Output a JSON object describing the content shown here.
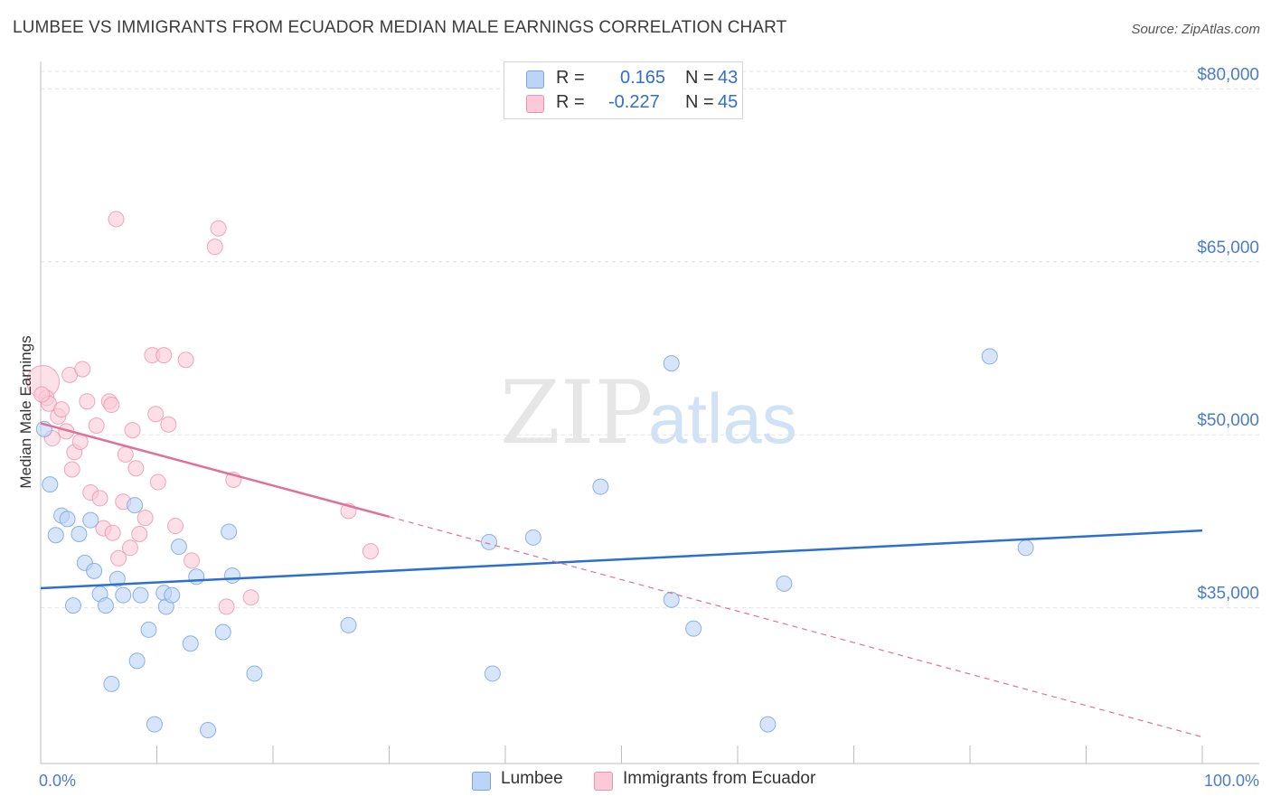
{
  "title": "LUMBEE VS IMMIGRANTS FROM ECUADOR MEDIAN MALE EARNINGS CORRELATION CHART",
  "source": "Source: ZipAtlas.com",
  "watermark": {
    "zip": "ZIP",
    "atlas": "atlas"
  },
  "legend": {
    "rows": [
      {
        "r_label": "R =",
        "r_value": "0.165",
        "n_label": "N =",
        "n_value": "43"
      },
      {
        "r_label": "R =",
        "r_value": "-0.227",
        "n_label": "N =",
        "n_value": "45"
      }
    ]
  },
  "colors": {
    "lumbee_fill": "#bcd4f7",
    "lumbee_stroke": "#7aa6e0",
    "lumbee_line": "#2c6fd1",
    "ecuador_fill": "#fbc9d7",
    "ecuador_stroke": "#eb93ad",
    "ecuador_line": "#e0709a",
    "tick_text": "#4a7cc9",
    "grid": "#e3e3e3"
  },
  "chart_data": {
    "type": "scatter",
    "title": "LUMBEE VS IMMIGRANTS FROM ECUADOR MEDIAN MALE EARNINGS CORRELATION CHART",
    "xlabel": "",
    "ylabel": "Median Male Earnings",
    "x_tick_labels": [
      "0.0%",
      "100.0%"
    ],
    "xlim": [
      0,
      100
    ],
    "ylim": [
      21500,
      83000
    ],
    "y_ticks": [
      {
        "value": 35000,
        "label": "$35,000"
      },
      {
        "value": 50000,
        "label": "$50,000"
      },
      {
        "value": 65000,
        "label": "$65,000"
      },
      {
        "value": 80000,
        "label": "$80,000"
      }
    ],
    "grid": true,
    "legend_position": "top-center",
    "series": [
      {
        "name": "Lumbee",
        "r": 0.165,
        "n": 43,
        "trend": {
          "x": [
            0,
            100
          ],
          "y": [
            36700,
            41700
          ],
          "dashed_extension": false
        },
        "points": [
          [
            0.3,
            50500
          ],
          [
            0.8,
            45700
          ],
          [
            1.3,
            41300
          ],
          [
            1.8,
            43000
          ],
          [
            2.3,
            42700
          ],
          [
            2.8,
            35200
          ],
          [
            3.3,
            41400
          ],
          [
            3.8,
            38900
          ],
          [
            4.3,
            42600
          ],
          [
            4.6,
            38200
          ],
          [
            5.1,
            36200
          ],
          [
            5.6,
            35200
          ],
          [
            6.1,
            28400
          ],
          [
            6.6,
            37500
          ],
          [
            7.1,
            36100
          ],
          [
            8.1,
            43900
          ],
          [
            8.3,
            30400
          ],
          [
            8.6,
            36100
          ],
          [
            9.3,
            33100
          ],
          [
            9.8,
            24900
          ],
          [
            10.6,
            36300
          ],
          [
            10.8,
            35100
          ],
          [
            11.3,
            36100
          ],
          [
            11.9,
            40300
          ],
          [
            12.9,
            31900
          ],
          [
            13.4,
            37700
          ],
          [
            14.4,
            24400
          ],
          [
            15.7,
            32900
          ],
          [
            16.2,
            41600
          ],
          [
            16.5,
            37800
          ],
          [
            18.4,
            29300
          ],
          [
            26.5,
            33500
          ],
          [
            38.6,
            40700
          ],
          [
            38.9,
            29300
          ],
          [
            42.4,
            41100
          ],
          [
            48.2,
            45500
          ],
          [
            54.3,
            56200
          ],
          [
            54.3,
            35700
          ],
          [
            56.2,
            33200
          ],
          [
            62.6,
            24900
          ],
          [
            64.0,
            37100
          ],
          [
            81.7,
            56800
          ],
          [
            84.8,
            40200
          ]
        ]
      },
      {
        "name": "Immigrants from Ecuador",
        "r": -0.227,
        "n": 45,
        "trend": {
          "x": [
            0,
            30,
            100
          ],
          "y": [
            51000,
            42900,
            23800
          ],
          "solid_until_x": 30
        },
        "points": [
          [
            0.2,
            54600
          ],
          [
            0.5,
            53200
          ],
          [
            0.7,
            52700
          ],
          [
            1.0,
            49700
          ],
          [
            1.5,
            51600
          ],
          [
            1.8,
            52200
          ],
          [
            2.2,
            50300
          ],
          [
            2.5,
            55200
          ],
          [
            2.7,
            47000
          ],
          [
            2.9,
            48500
          ],
          [
            3.4,
            49400
          ],
          [
            3.6,
            55700
          ],
          [
            4.0,
            52900
          ],
          [
            4.3,
            45000
          ],
          [
            4.8,
            50800
          ],
          [
            5.1,
            44500
          ],
          [
            5.4,
            41900
          ],
          [
            5.9,
            52900
          ],
          [
            6.1,
            52600
          ],
          [
            6.2,
            41500
          ],
          [
            6.5,
            68700
          ],
          [
            6.7,
            39300
          ],
          [
            7.1,
            44200
          ],
          [
            7.3,
            48300
          ],
          [
            7.7,
            40200
          ],
          [
            7.9,
            50400
          ],
          [
            8.2,
            47100
          ],
          [
            8.5,
            41400
          ],
          [
            9.0,
            42800
          ],
          [
            9.6,
            56900
          ],
          [
            9.9,
            51800
          ],
          [
            10.1,
            45900
          ],
          [
            10.6,
            56900
          ],
          [
            11.0,
            50900
          ],
          [
            11.6,
            42100
          ],
          [
            12.5,
            56500
          ],
          [
            13.0,
            39100
          ],
          [
            15.0,
            66300
          ],
          [
            15.3,
            67900
          ],
          [
            16.0,
            35100
          ],
          [
            16.6,
            46100
          ],
          [
            18.1,
            35900
          ],
          [
            26.5,
            43400
          ],
          [
            28.4,
            39900
          ],
          [
            0.1,
            53500
          ]
        ]
      }
    ]
  },
  "bottom_legend": {
    "items": [
      "Lumbee",
      "Immigrants from Ecuador"
    ]
  }
}
